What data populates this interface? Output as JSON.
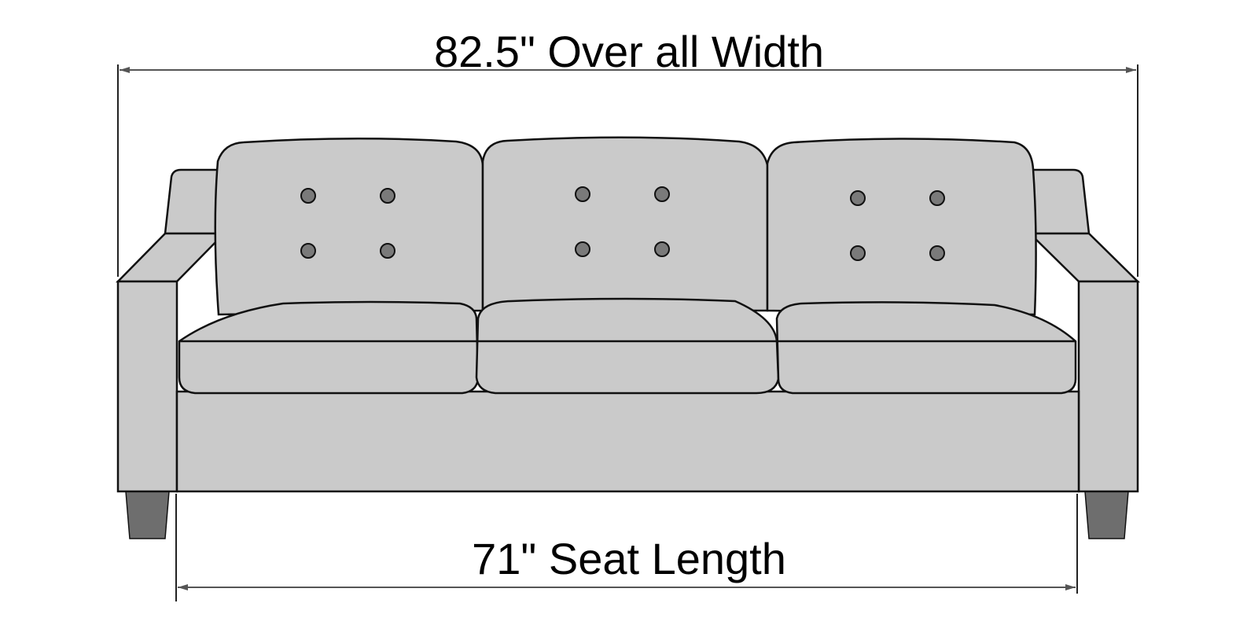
{
  "dimensions": {
    "overall_width_label": "82.5\" Over all Width",
    "seat_length_label": "71\" Seat Length"
  },
  "colors": {
    "upholstery": "#cacaca",
    "outline": "#111111",
    "button": "#7a7a7a",
    "leg": "#6e6e6e",
    "dimension_line": "#333333",
    "background": "#ffffff"
  }
}
